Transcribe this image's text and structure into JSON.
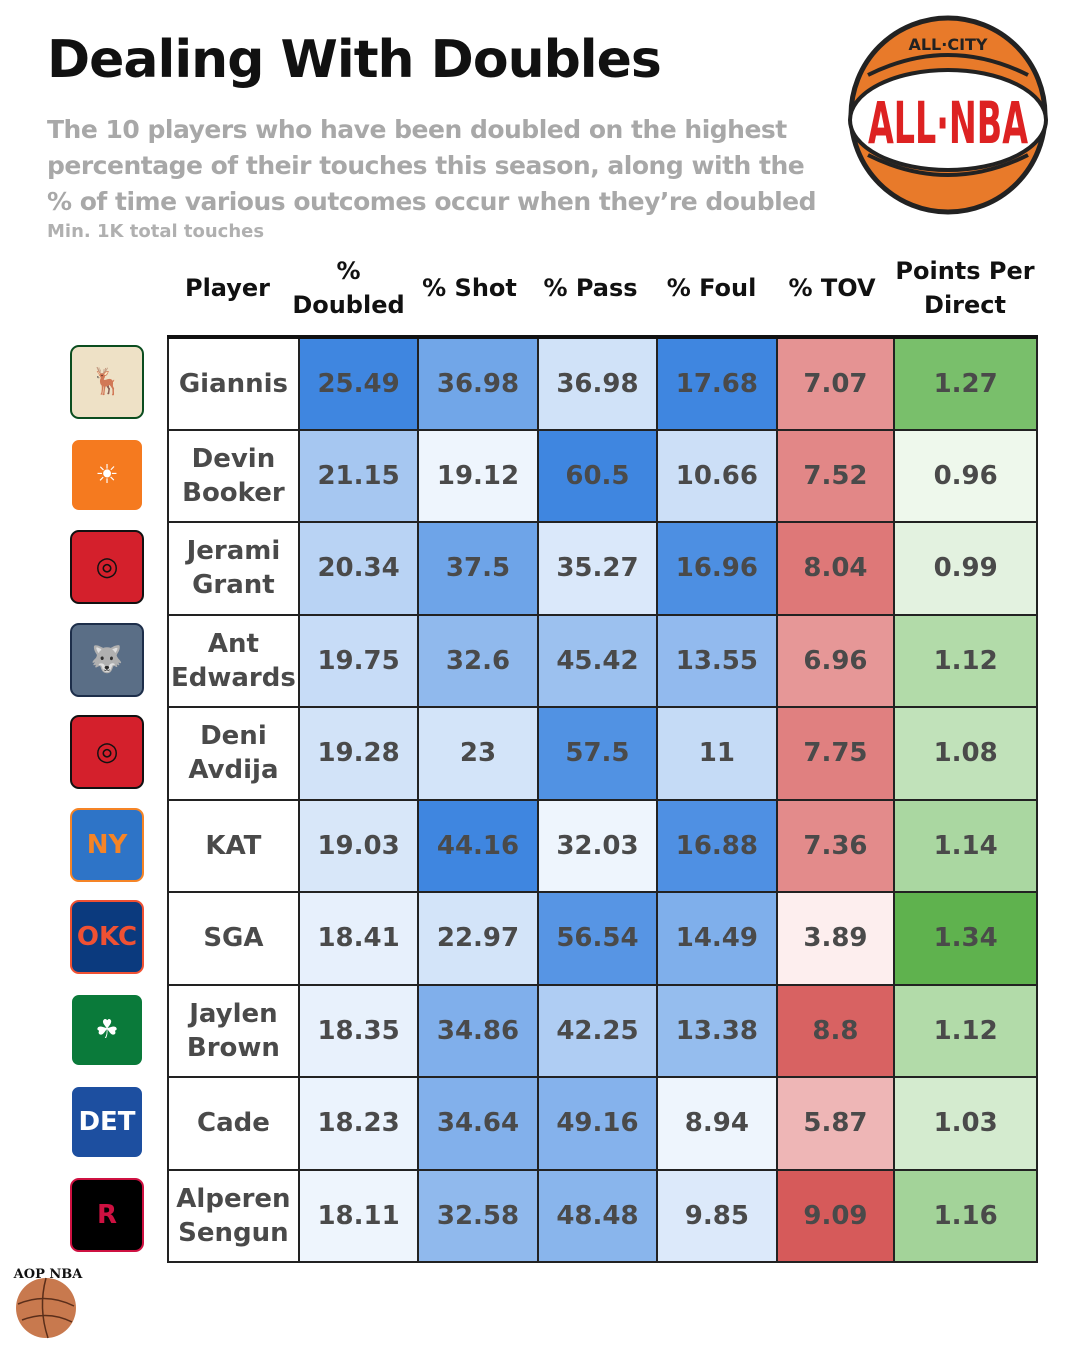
{
  "title": "Dealing With Doubles",
  "subtitle": "The 10 players who have been doubled on the highest percentage of their touches this season, along with the % of time various outcomes occur when they’re doubled",
  "note": "Min. 1K total touches",
  "logos": {
    "top_right": "ALL-CITY ALL-NBA",
    "bottom_left": "AOP NBA"
  },
  "colors": {
    "blue": "#3f86e0",
    "red": "#d65a5a",
    "green": "#5fb24e",
    "text": "#4a4a4a"
  },
  "chart_data": {
    "type": "table",
    "columns": [
      "Player",
      "% Doubled",
      "% Shot",
      "% Pass",
      "% Foul",
      "% TOV",
      "Points Per Direct"
    ],
    "rows": [
      {
        "player": "Giannis",
        "team_icon": "bucks-logo-icon",
        "values": [
          25.49,
          36.98,
          36.98,
          17.68,
          7.07,
          1.27
        ]
      },
      {
        "player": "Devin Booker",
        "team_icon": "suns-logo-icon",
        "values": [
          21.15,
          19.12,
          60.5,
          10.66,
          7.52,
          0.96
        ]
      },
      {
        "player": "Jerami Grant",
        "team_icon": "blazers-logo-icon",
        "values": [
          20.34,
          37.5,
          35.27,
          16.96,
          8.04,
          0.99
        ]
      },
      {
        "player": "Ant Edwards",
        "team_icon": "timberwolves-logo-icon",
        "values": [
          19.75,
          32.6,
          45.42,
          13.55,
          6.96,
          1.12
        ]
      },
      {
        "player": "Deni Avdija",
        "team_icon": "blazers-logo-icon",
        "values": [
          19.28,
          23,
          57.5,
          11,
          7.75,
          1.08
        ]
      },
      {
        "player": "KAT",
        "team_icon": "knicks-logo-icon",
        "values": [
          19.03,
          44.16,
          32.03,
          16.88,
          7.36,
          1.14
        ]
      },
      {
        "player": "SGA",
        "team_icon": "thunder-logo-icon",
        "values": [
          18.41,
          22.97,
          56.54,
          14.49,
          3.89,
          1.34
        ]
      },
      {
        "player": "Jaylen Brown",
        "team_icon": "celtics-logo-icon",
        "values": [
          18.35,
          34.86,
          42.25,
          13.38,
          8.8,
          1.12
        ]
      },
      {
        "player": "Cade",
        "team_icon": "pistons-logo-icon",
        "values": [
          18.23,
          34.64,
          49.16,
          8.94,
          5.87,
          1.03
        ]
      },
      {
        "player": "Alperen Sengun",
        "team_icon": "rockets-logo-icon",
        "values": [
          18.11,
          32.58,
          48.48,
          9.85,
          9.09,
          1.16
        ]
      }
    ]
  }
}
